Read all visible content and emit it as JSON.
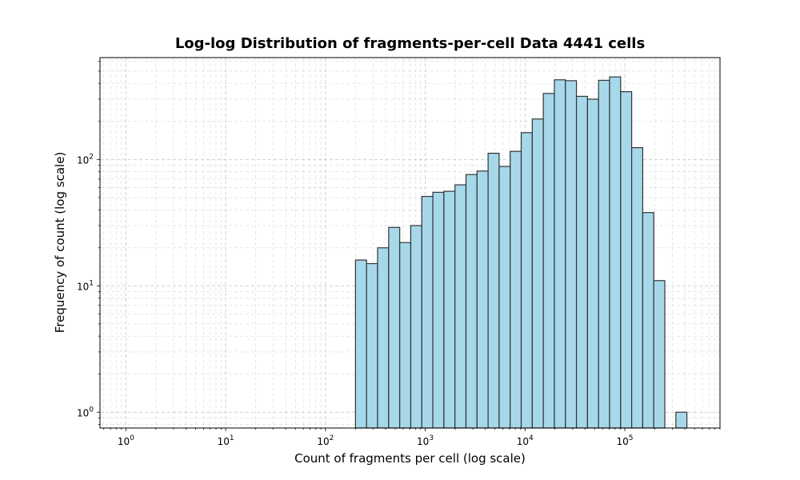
{
  "chart_data": {
    "type": "bar",
    "title": "Log-log Distribution of fragments-per-cell Data 4441 cells",
    "xlabel": "Count of fragments per cell (log scale)",
    "ylabel": "Frequency of count (log scale)",
    "x_scale": "log",
    "y_scale": "log",
    "xlim": [
      0.55,
      900000
    ],
    "ylim": [
      0.75,
      640
    ],
    "grid": true,
    "x_ticks": [
      {
        "value": 1,
        "base": "10",
        "exp": "0"
      },
      {
        "value": 10,
        "base": "10",
        "exp": "1"
      },
      {
        "value": 100,
        "base": "10",
        "exp": "2"
      },
      {
        "value": 1000,
        "base": "10",
        "exp": "3"
      },
      {
        "value": 10000,
        "base": "10",
        "exp": "4"
      },
      {
        "value": 100000,
        "base": "10",
        "exp": "5"
      }
    ],
    "y_ticks": [
      {
        "value": 1,
        "base": "10",
        "exp": "0"
      },
      {
        "value": 10,
        "base": "10",
        "exp": "1"
      },
      {
        "value": 100,
        "base": "10",
        "exp": "2"
      }
    ],
    "bin_edges": [
      200,
      258,
      333,
      430,
      555,
      716,
      924,
      1192,
      1538,
      1985,
      2561,
      3305,
      4265,
      5503,
      7101,
      9163,
      11823,
      15256,
      19686,
      25402,
      32777,
      42294,
      54574,
      70419,
      90865,
      117248,
      151291,
      195219,
      251902,
      325042,
      419418
    ],
    "counts": [
      16,
      15,
      20,
      29,
      22,
      30,
      51,
      55,
      56,
      63,
      76,
      81,
      112,
      88,
      116,
      163,
      209,
      333,
      427,
      420,
      316,
      300,
      423,
      450,
      344,
      124,
      38,
      11,
      0,
      1
    ],
    "bar_color": "#a6d8ea",
    "edge_color": "#333333"
  }
}
